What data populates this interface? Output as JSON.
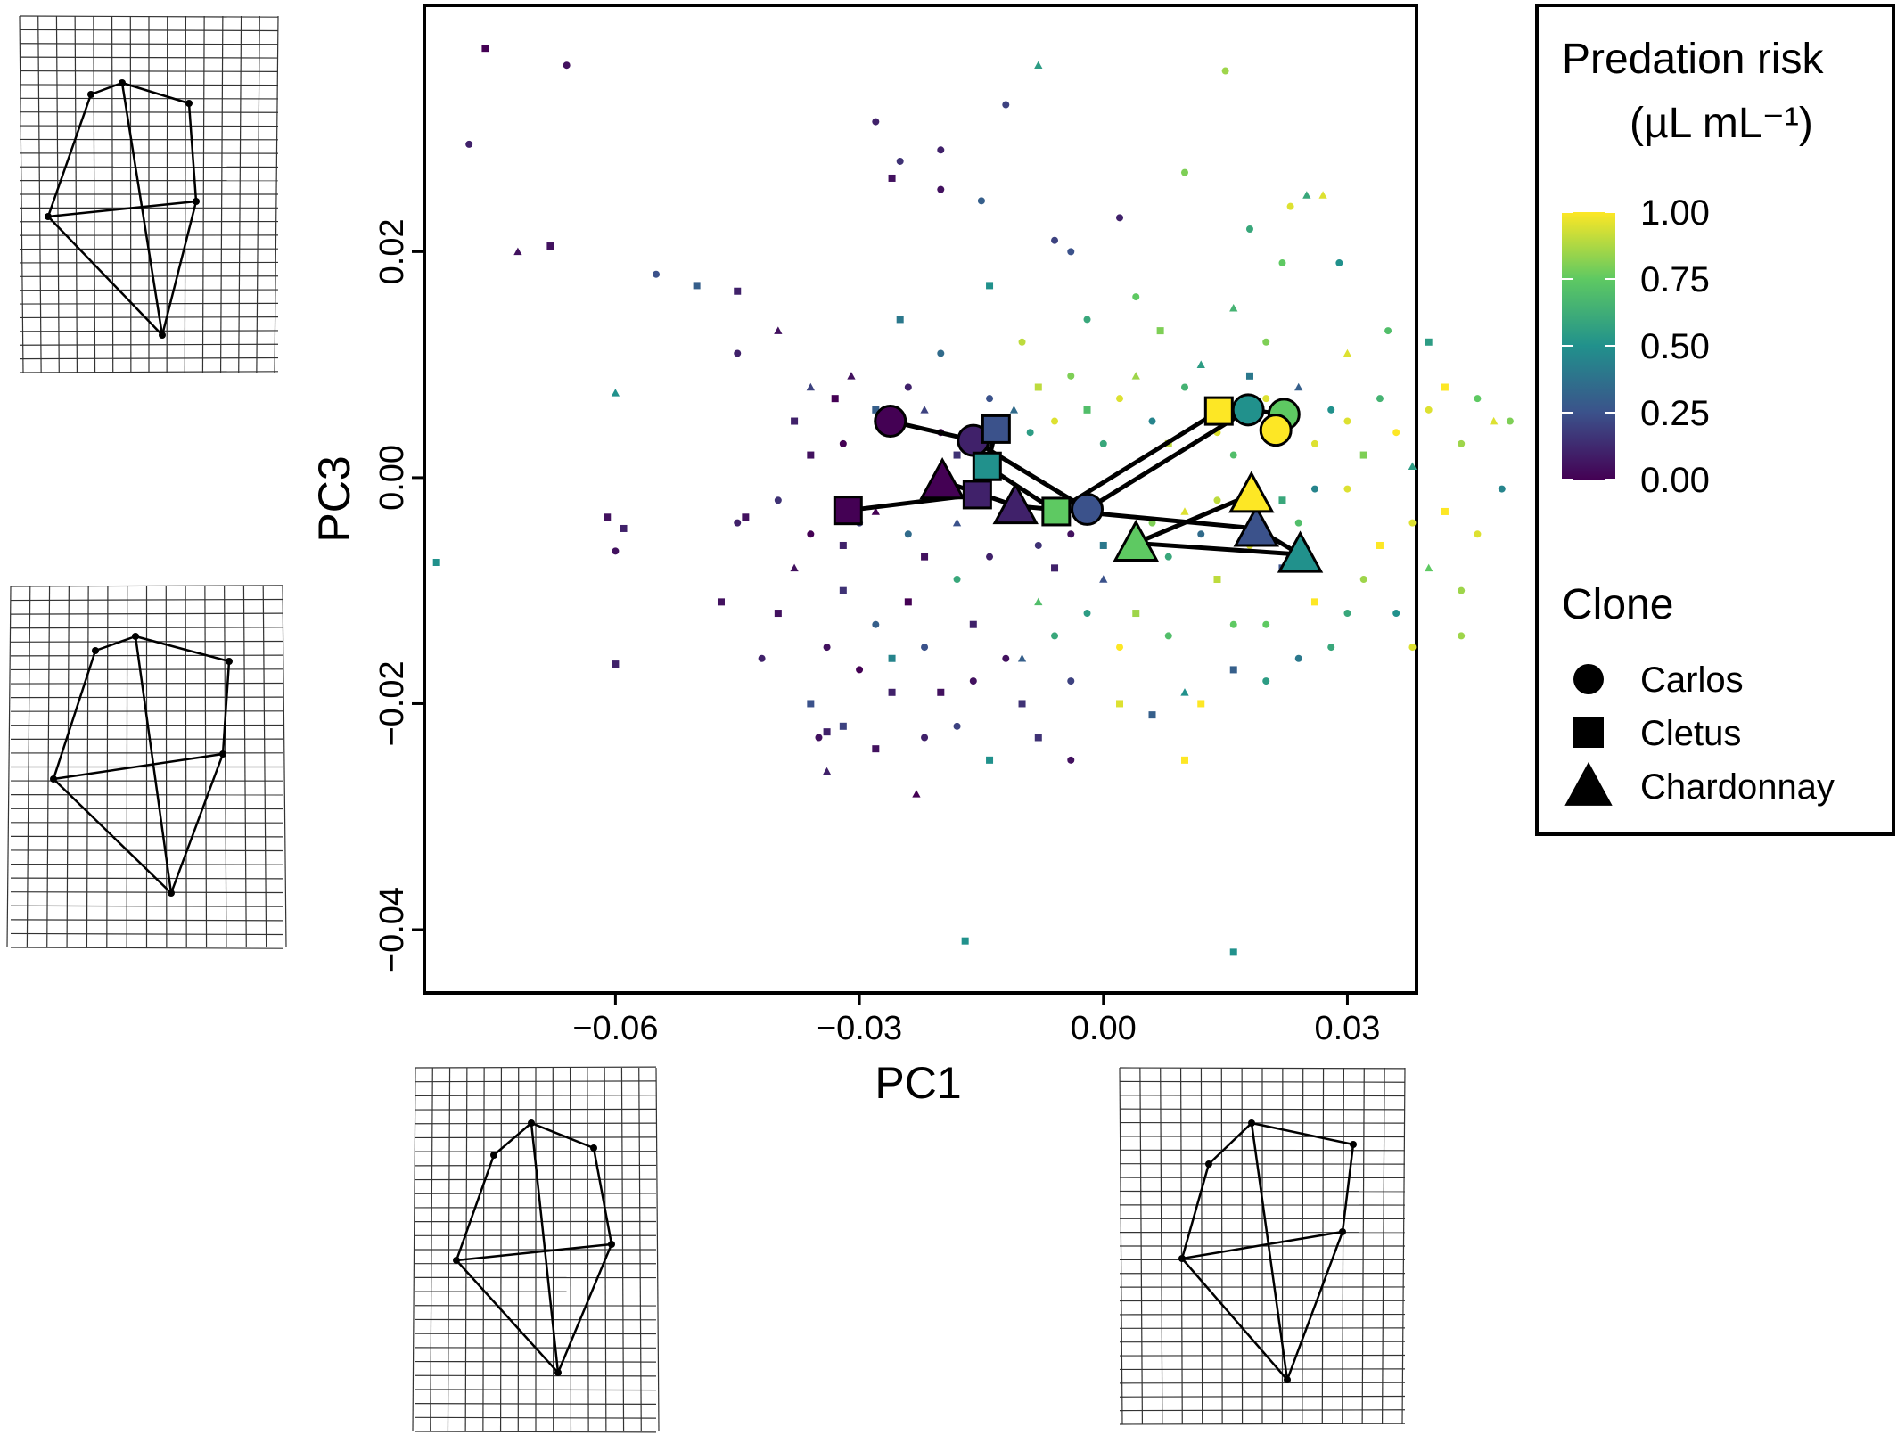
{
  "chart_data": {
    "type": "scatter",
    "title": "",
    "xlabel": "PC1",
    "ylabel": "PC3",
    "xlim": [
      -0.0835,
      0.0385
    ],
    "ylim": [
      -0.0456,
      0.0418
    ],
    "x_ticks": [
      -0.06,
      -0.03,
      0.0,
      0.03
    ],
    "x_tick_labels": [
      "−0.06",
      "−0.03",
      "0.00",
      "0.03"
    ],
    "y_ticks": [
      0.02,
      0.0,
      -0.02,
      -0.04
    ],
    "y_tick_labels": [
      "0.02",
      "0.00",
      "−0.02",
      "−0.04"
    ],
    "grid": false,
    "legend": {
      "position": "right",
      "color_title": "Predation risk",
      "color_unit": "(µL mL⁻¹)",
      "color_ticks": [
        1.0,
        0.75,
        0.5,
        0.25,
        0.0
      ],
      "color_tick_labels": [
        "1.00",
        "0.75",
        "0.50",
        "0.25",
        "0.00"
      ],
      "shape_title": "Clone",
      "shape_entries": [
        {
          "name": "Carlos",
          "shape": "circle"
        },
        {
          "name": "Cletus",
          "shape": "square"
        },
        {
          "name": "Chardonnay",
          "shape": "triangle"
        }
      ]
    },
    "colorscale": "viridis",
    "series": [
      {
        "name": "Carlos",
        "shape": "circle",
        "points": [
          {
            "x": -0.0262,
            "y": 0.005,
            "risk": 0.0
          },
          {
            "x": -0.016,
            "y": 0.0033,
            "risk": 0.1
          },
          {
            "x": -0.002,
            "y": -0.0028,
            "risk": 0.25
          },
          {
            "x": 0.0178,
            "y": 0.006,
            "risk": 0.5
          },
          {
            "x": 0.0222,
            "y": 0.0056,
            "risk": 0.75
          },
          {
            "x": 0.0212,
            "y": 0.0042,
            "risk": 1.0
          }
        ]
      },
      {
        "name": "Cletus",
        "shape": "square",
        "points": [
          {
            "x": -0.0314,
            "y": -0.0029,
            "risk": 0.0
          },
          {
            "x": -0.0155,
            "y": -0.0015,
            "risk": 0.1
          },
          {
            "x": -0.0132,
            "y": 0.0043,
            "risk": 0.25
          },
          {
            "x": -0.0143,
            "y": 0.001,
            "risk": 0.5
          },
          {
            "x": -0.0058,
            "y": -0.003,
            "risk": 0.75
          },
          {
            "x": 0.0142,
            "y": 0.0059,
            "risk": 1.0
          }
        ]
      },
      {
        "name": "Chardonnay",
        "shape": "triangle",
        "points": [
          {
            "x": -0.0198,
            "y": -0.0003,
            "risk": 0.0
          },
          {
            "x": -0.0108,
            "y": -0.0025,
            "risk": 0.1
          },
          {
            "x": 0.0188,
            "y": -0.0045,
            "risk": 0.25
          },
          {
            "x": 0.0242,
            "y": -0.0068,
            "risk": 0.5
          },
          {
            "x": 0.004,
            "y": -0.0058,
            "risk": 0.75
          },
          {
            "x": 0.0182,
            "y": -0.0015,
            "risk": 1.0
          }
        ]
      }
    ],
    "raw_points": [
      [
        -0.076,
        0.038,
        0.0,
        "square"
      ],
      [
        -0.066,
        0.0365,
        0.05,
        "circle"
      ],
      [
        -0.078,
        0.0295,
        0.1,
        "circle"
      ],
      [
        -0.072,
        0.02,
        0.05,
        "triangle"
      ],
      [
        -0.068,
        0.0205,
        0.05,
        "square"
      ],
      [
        -0.055,
        0.018,
        0.25,
        "circle"
      ],
      [
        -0.05,
        0.017,
        0.3,
        "square"
      ],
      [
        -0.045,
        0.0165,
        0.1,
        "square"
      ],
      [
        -0.04,
        0.013,
        0.05,
        "triangle"
      ],
      [
        -0.045,
        0.011,
        0.1,
        "circle"
      ],
      [
        -0.06,
        0.0075,
        0.5,
        "triangle"
      ],
      [
        -0.082,
        -0.0075,
        0.5,
        "square"
      ],
      [
        -0.061,
        -0.0035,
        0.05,
        "square"
      ],
      [
        -0.059,
        -0.0045,
        0.1,
        "square"
      ],
      [
        -0.06,
        -0.0065,
        0.05,
        "circle"
      ],
      [
        -0.06,
        -0.0165,
        0.1,
        "square"
      ],
      [
        -0.047,
        -0.011,
        0.05,
        "square"
      ],
      [
        -0.045,
        -0.004,
        0.1,
        "circle"
      ],
      [
        -0.044,
        -0.0035,
        0.05,
        "square"
      ],
      [
        -0.035,
        -0.023,
        0.05,
        "circle"
      ],
      [
        -0.034,
        -0.0225,
        0.1,
        "square"
      ],
      [
        -0.023,
        -0.028,
        0.0,
        "triangle"
      ],
      [
        -0.028,
        0.0315,
        0.1,
        "circle"
      ],
      [
        -0.026,
        0.0265,
        0.05,
        "square"
      ],
      [
        -0.025,
        0.028,
        0.15,
        "circle"
      ],
      [
        -0.02,
        0.029,
        0.1,
        "circle"
      ],
      [
        -0.02,
        0.0255,
        0.05,
        "circle"
      ],
      [
        -0.015,
        0.0245,
        0.3,
        "circle"
      ],
      [
        -0.012,
        0.033,
        0.2,
        "circle"
      ],
      [
        -0.008,
        0.0365,
        0.55,
        "triangle"
      ],
      [
        -0.006,
        0.021,
        0.2,
        "circle"
      ],
      [
        -0.004,
        0.02,
        0.25,
        "circle"
      ],
      [
        0.002,
        0.023,
        0.1,
        "circle"
      ],
      [
        0.01,
        0.027,
        0.8,
        "circle"
      ],
      [
        0.015,
        0.036,
        0.85,
        "circle"
      ],
      [
        0.025,
        0.025,
        0.6,
        "triangle"
      ],
      [
        0.027,
        0.025,
        0.95,
        "triangle"
      ],
      [
        0.023,
        0.024,
        0.95,
        "circle"
      ],
      [
        0.018,
        0.022,
        0.6,
        "circle"
      ],
      [
        0.022,
        0.019,
        0.75,
        "circle"
      ],
      [
        0.029,
        0.019,
        0.5,
        "circle"
      ],
      [
        -0.017,
        -0.041,
        0.5,
        "square"
      ],
      [
        0.016,
        -0.042,
        0.5,
        "square"
      ],
      [
        -0.038,
        0.005,
        0.1,
        "square"
      ],
      [
        -0.036,
        0.008,
        0.2,
        "triangle"
      ],
      [
        -0.031,
        0.009,
        0.05,
        "triangle"
      ],
      [
        -0.033,
        0.007,
        0.0,
        "square"
      ],
      [
        -0.028,
        0.006,
        0.3,
        "square"
      ],
      [
        -0.024,
        0.008,
        0.1,
        "circle"
      ],
      [
        -0.022,
        0.006,
        0.2,
        "triangle"
      ],
      [
        -0.02,
        0.004,
        0.0,
        "circle"
      ],
      [
        -0.018,
        0.002,
        0.15,
        "square"
      ],
      [
        -0.014,
        0.007,
        0.25,
        "circle"
      ],
      [
        -0.011,
        0.006,
        0.35,
        "triangle"
      ],
      [
        -0.009,
        0.004,
        0.55,
        "circle"
      ],
      [
        -0.008,
        0.008,
        0.9,
        "square"
      ],
      [
        -0.006,
        0.005,
        0.95,
        "circle"
      ],
      [
        -0.004,
        0.009,
        0.8,
        "circle"
      ],
      [
        -0.002,
        0.006,
        0.7,
        "square"
      ],
      [
        0.0,
        0.003,
        0.6,
        "circle"
      ],
      [
        0.002,
        0.007,
        0.95,
        "circle"
      ],
      [
        0.004,
        0.009,
        0.85,
        "triangle"
      ],
      [
        0.006,
        0.005,
        0.45,
        "circle"
      ],
      [
        0.008,
        0.003,
        0.9,
        "square"
      ],
      [
        0.01,
        0.008,
        0.65,
        "circle"
      ],
      [
        0.012,
        0.01,
        0.55,
        "triangle"
      ],
      [
        0.014,
        0.004,
        0.95,
        "circle"
      ],
      [
        0.016,
        0.002,
        0.7,
        "circle"
      ],
      [
        0.018,
        0.009,
        0.4,
        "square"
      ],
      [
        0.02,
        0.007,
        0.95,
        "circle"
      ],
      [
        0.024,
        0.008,
        0.3,
        "triangle"
      ],
      [
        0.026,
        0.003,
        0.95,
        "circle"
      ],
      [
        0.028,
        0.006,
        0.5,
        "circle"
      ],
      [
        0.03,
        0.005,
        0.95,
        "circle"
      ],
      [
        0.032,
        0.002,
        0.8,
        "square"
      ],
      [
        0.034,
        0.007,
        0.65,
        "circle"
      ],
      [
        0.036,
        0.004,
        1.0,
        "circle"
      ],
      [
        0.038,
        0.001,
        0.55,
        "triangle"
      ],
      [
        0.04,
        0.006,
        0.95,
        "circle"
      ],
      [
        0.042,
        0.008,
        1.0,
        "square"
      ],
      [
        0.044,
        0.003,
        0.85,
        "circle"
      ],
      [
        0.046,
        0.007,
        0.75,
        "circle"
      ],
      [
        0.048,
        0.005,
        0.95,
        "triangle"
      ],
      [
        0.05,
        0.005,
        0.8,
        "circle"
      ],
      [
        0.049,
        -0.001,
        0.45,
        "circle"
      ],
      [
        0.046,
        -0.005,
        0.95,
        "circle"
      ],
      [
        0.044,
        -0.01,
        0.85,
        "circle"
      ],
      [
        0.042,
        -0.003,
        1.0,
        "square"
      ],
      [
        0.04,
        -0.008,
        0.75,
        "triangle"
      ],
      [
        0.038,
        -0.004,
        0.95,
        "circle"
      ],
      [
        0.036,
        -0.012,
        0.5,
        "circle"
      ],
      [
        0.034,
        -0.006,
        1.0,
        "square"
      ],
      [
        0.032,
        -0.009,
        0.85,
        "circle"
      ],
      [
        0.03,
        -0.001,
        0.95,
        "circle"
      ],
      [
        0.028,
        -0.015,
        0.6,
        "circle"
      ],
      [
        0.026,
        -0.011,
        1.0,
        "square"
      ],
      [
        0.024,
        -0.004,
        0.7,
        "circle"
      ],
      [
        0.022,
        -0.008,
        0.25,
        "square"
      ],
      [
        0.02,
        -0.013,
        0.75,
        "circle"
      ],
      [
        0.018,
        -0.006,
        0.95,
        "circle"
      ],
      [
        0.016,
        -0.017,
        0.3,
        "square"
      ],
      [
        0.014,
        -0.009,
        0.9,
        "square"
      ],
      [
        0.012,
        -0.02,
        1.0,
        "square"
      ],
      [
        0.01,
        -0.025,
        1.0,
        "square"
      ],
      [
        0.008,
        -0.007,
        0.6,
        "circle"
      ],
      [
        0.006,
        -0.021,
        0.3,
        "square"
      ],
      [
        0.004,
        -0.012,
        0.85,
        "square"
      ],
      [
        0.002,
        -0.015,
        1.0,
        "circle"
      ],
      [
        0.0,
        -0.009,
        0.25,
        "triangle"
      ],
      [
        -0.002,
        -0.012,
        0.55,
        "circle"
      ],
      [
        -0.004,
        -0.018,
        0.2,
        "circle"
      ],
      [
        -0.006,
        -0.008,
        0.1,
        "square"
      ],
      [
        -0.008,
        -0.011,
        0.7,
        "triangle"
      ],
      [
        -0.01,
        -0.02,
        0.15,
        "square"
      ],
      [
        -0.012,
        -0.016,
        0.05,
        "circle"
      ],
      [
        -0.014,
        -0.025,
        0.5,
        "square"
      ],
      [
        -0.016,
        -0.013,
        0.1,
        "square"
      ],
      [
        -0.018,
        -0.009,
        0.6,
        "circle"
      ],
      [
        -0.02,
        -0.019,
        0.05,
        "square"
      ],
      [
        -0.022,
        -0.015,
        0.25,
        "circle"
      ],
      [
        -0.024,
        -0.011,
        0.0,
        "square"
      ],
      [
        -0.026,
        -0.019,
        0.1,
        "square"
      ],
      [
        -0.028,
        -0.013,
        0.3,
        "circle"
      ],
      [
        -0.03,
        -0.017,
        0.0,
        "circle"
      ],
      [
        -0.032,
        -0.01,
        0.15,
        "square"
      ],
      [
        -0.034,
        -0.015,
        0.05,
        "circle"
      ],
      [
        -0.036,
        -0.02,
        0.25,
        "square"
      ],
      [
        -0.038,
        -0.008,
        0.05,
        "triangle"
      ],
      [
        -0.036,
        -0.005,
        0.0,
        "circle"
      ],
      [
        -0.032,
        -0.006,
        0.1,
        "square"
      ],
      [
        -0.03,
        -0.004,
        0.2,
        "circle"
      ],
      [
        -0.028,
        -0.003,
        0.0,
        "triangle"
      ],
      [
        -0.024,
        -0.005,
        0.35,
        "circle"
      ],
      [
        -0.022,
        -0.007,
        0.05,
        "square"
      ],
      [
        -0.018,
        -0.004,
        0.25,
        "triangle"
      ],
      [
        -0.014,
        -0.007,
        0.1,
        "circle"
      ],
      [
        -0.01,
        -0.003,
        0.45,
        "square"
      ],
      [
        -0.008,
        -0.006,
        0.15,
        "circle"
      ],
      [
        -0.004,
        -0.005,
        0.05,
        "circle"
      ],
      [
        0.0,
        -0.006,
        0.4,
        "square"
      ],
      [
        0.006,
        -0.004,
        0.8,
        "circle"
      ],
      [
        0.01,
        -0.003,
        0.95,
        "triangle"
      ],
      [
        0.012,
        -0.005,
        0.35,
        "circle"
      ],
      [
        0.014,
        -0.002,
        0.9,
        "circle"
      ],
      [
        0.022,
        -0.002,
        0.6,
        "square"
      ],
      [
        0.026,
        -0.001,
        0.45,
        "circle"
      ],
      [
        -0.04,
        -0.012,
        0.05,
        "square"
      ],
      [
        -0.042,
        -0.016,
        0.1,
        "circle"
      ],
      [
        0.004,
        0.016,
        0.75,
        "circle"
      ],
      [
        0.007,
        0.013,
        0.8,
        "square"
      ],
      [
        -0.002,
        0.014,
        0.6,
        "circle"
      ],
      [
        -0.014,
        0.017,
        0.5,
        "square"
      ],
      [
        -0.02,
        0.011,
        0.35,
        "circle"
      ],
      [
        -0.025,
        0.014,
        0.4,
        "square"
      ],
      [
        -0.01,
        0.012,
        0.9,
        "circle"
      ],
      [
        0.016,
        0.015,
        0.65,
        "triangle"
      ],
      [
        0.02,
        0.012,
        0.8,
        "circle"
      ],
      [
        0.03,
        0.011,
        0.95,
        "triangle"
      ],
      [
        0.035,
        0.013,
        0.7,
        "circle"
      ],
      [
        0.04,
        0.012,
        0.55,
        "square"
      ],
      [
        -0.032,
        0.003,
        0.0,
        "circle"
      ],
      [
        -0.036,
        0.002,
        0.05,
        "square"
      ],
      [
        -0.04,
        -0.002,
        0.15,
        "circle"
      ],
      [
        -0.032,
        -0.022,
        0.2,
        "square"
      ],
      [
        -0.028,
        -0.024,
        0.05,
        "square"
      ],
      [
        -0.022,
        -0.023,
        0.1,
        "circle"
      ],
      [
        -0.018,
        -0.022,
        0.2,
        "circle"
      ],
      [
        -0.008,
        -0.023,
        0.15,
        "square"
      ],
      [
        -0.004,
        -0.025,
        0.05,
        "circle"
      ],
      [
        0.002,
        -0.02,
        0.95,
        "square"
      ],
      [
        0.008,
        -0.014,
        0.7,
        "circle"
      ],
      [
        0.016,
        -0.013,
        0.75,
        "circle"
      ],
      [
        0.024,
        -0.016,
        0.4,
        "circle"
      ],
      [
        0.03,
        -0.012,
        0.6,
        "circle"
      ],
      [
        0.038,
        -0.015,
        0.95,
        "circle"
      ],
      [
        0.044,
        -0.014,
        0.85,
        "circle"
      ],
      [
        -0.01,
        -0.016,
        0.3,
        "triangle"
      ],
      [
        -0.016,
        -0.018,
        0.05,
        "circle"
      ],
      [
        -0.026,
        -0.016,
        0.45,
        "square"
      ],
      [
        -0.006,
        -0.014,
        0.6,
        "circle"
      ],
      [
        0.01,
        -0.019,
        0.5,
        "triangle"
      ],
      [
        0.02,
        -0.018,
        0.55,
        "circle"
      ],
      [
        -0.034,
        -0.026,
        0.1,
        "triangle"
      ]
    ]
  },
  "thumbnails": {
    "top_left_icon": "deformation-grid-icon",
    "middle_left_icon": "deformation-grid-icon",
    "bottom_left_icon": "deformation-grid-icon",
    "bottom_right_icon": "deformation-grid-icon"
  }
}
